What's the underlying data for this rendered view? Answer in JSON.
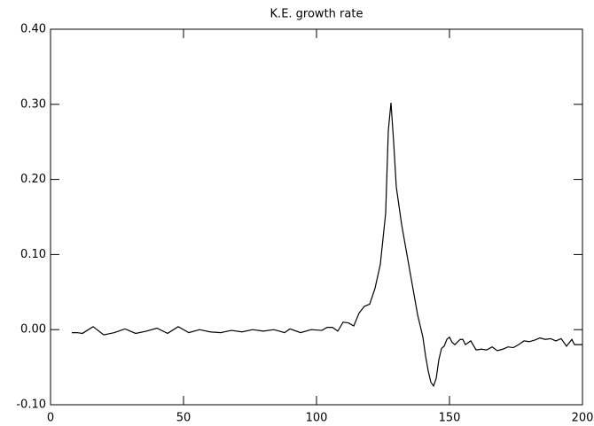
{
  "chart_data": {
    "type": "line",
    "title": "K.E. growth rate",
    "x": [
      8,
      10,
      12,
      16,
      20,
      24,
      28,
      32,
      36,
      40,
      44,
      48,
      52,
      56,
      60,
      64,
      68,
      72,
      76,
      80,
      84,
      88,
      90,
      94,
      98,
      102,
      104,
      106,
      108,
      110,
      112,
      114,
      116,
      118,
      120,
      122,
      124,
      126,
      127,
      128,
      129,
      130,
      132,
      134,
      136,
      138,
      140,
      141,
      142,
      143,
      144,
      145,
      146,
      147,
      148,
      149,
      150,
      151,
      152,
      154,
      155,
      156,
      158,
      160,
      162,
      164,
      166,
      168,
      170,
      172,
      174,
      176,
      178,
      180,
      182,
      184,
      186,
      188,
      190,
      192,
      194,
      196,
      197,
      198,
      200
    ],
    "series": [
      {
        "name": "K.E. growth rate",
        "color": "#000000",
        "values": [
          -0.004,
          -0.004,
          -0.005,
          0.004,
          -0.007,
          -0.004,
          0.001,
          -0.005,
          -0.002,
          0.002,
          -0.005,
          0.004,
          -0.004,
          0.0,
          -0.003,
          -0.004,
          -0.001,
          -0.003,
          0.0,
          -0.002,
          0.0,
          -0.004,
          0.001,
          -0.004,
          0.0,
          -0.001,
          0.003,
          0.003,
          -0.002,
          0.01,
          0.009,
          0.005,
          0.022,
          0.031,
          0.034,
          0.055,
          0.087,
          0.155,
          0.265,
          0.302,
          0.25,
          0.19,
          0.14,
          0.1,
          0.06,
          0.02,
          -0.01,
          -0.035,
          -0.055,
          -0.07,
          -0.075,
          -0.065,
          -0.04,
          -0.025,
          -0.022,
          -0.013,
          -0.01,
          -0.017,
          -0.02,
          -0.013,
          -0.013,
          -0.02,
          -0.015,
          -0.027,
          -0.026,
          -0.027,
          -0.023,
          -0.028,
          -0.026,
          -0.023,
          -0.024,
          -0.02,
          -0.015,
          -0.016,
          -0.014,
          -0.011,
          -0.013,
          -0.012,
          -0.015,
          -0.012,
          -0.022,
          -0.013,
          -0.02,
          -0.02,
          -0.02
        ]
      }
    ],
    "xlim": [
      0,
      200
    ],
    "xticks": [
      0,
      50,
      100,
      150,
      200
    ],
    "ylim": [
      -0.1,
      0.4
    ],
    "yticks": [
      {
        "value": -0.1,
        "label": "-0.10"
      },
      {
        "value": 0.0,
        "label": "0.00"
      },
      {
        "value": 0.1,
        "label": "0.10"
      },
      {
        "value": 0.2,
        "label": "0.20"
      },
      {
        "value": 0.3,
        "label": "0.30"
      },
      {
        "value": 0.4,
        "label": "0.40"
      }
    ]
  }
}
